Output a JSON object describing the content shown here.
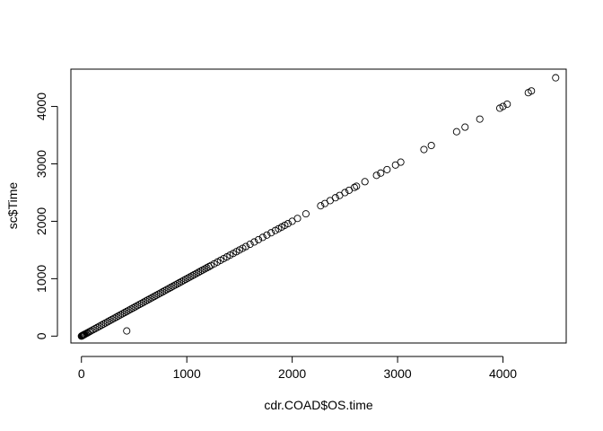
{
  "chart_data": {
    "type": "scatter",
    "title": "",
    "xlabel": "cdr.COAD$OS.time",
    "ylabel": "sc$Time",
    "xlim": [
      -100,
      4600
    ],
    "ylim": [
      -120,
      4650
    ],
    "xticks": [
      0,
      1000,
      2000,
      3000,
      4000
    ],
    "yticks": [
      0,
      1000,
      2000,
      3000,
      4000
    ],
    "grid": false,
    "legend": "none",
    "point_color": "#000000",
    "series": [
      {
        "x": [
          0,
          5,
          10,
          15,
          20,
          25,
          30,
          40,
          50,
          60,
          75,
          90,
          110,
          130,
          150,
          170,
          190,
          210,
          230,
          250,
          270,
          290,
          310,
          330,
          350,
          370,
          390,
          410,
          430,
          450,
          470,
          490,
          510,
          530,
          550,
          570,
          590,
          610,
          630,
          650,
          670,
          690,
          710,
          730,
          750,
          770,
          790,
          810,
          830,
          850,
          870,
          890,
          910,
          930,
          950,
          970,
          990,
          1010,
          1030,
          1050,
          1070,
          1090,
          1110,
          1130,
          1150,
          1170,
          1190,
          1210,
          1230,
          1260,
          1290,
          1320,
          1350,
          1380,
          1410,
          1440,
          1470,
          1500,
          1530,
          1560,
          1600,
          1640,
          1680,
          1720,
          1760,
          1800,
          1840,
          1870,
          1900,
          1930,
          1960,
          2000,
          2050,
          2130,
          2270,
          2310,
          2360,
          2410,
          2450,
          2500,
          2540,
          2590,
          2610,
          2690,
          2800,
          2840,
          2900,
          2980,
          3030,
          3250,
          3320,
          3560,
          3640,
          3780,
          3970,
          4000,
          4040,
          4240,
          4270,
          4500,
          430
        ],
        "y": [
          0,
          5,
          10,
          15,
          20,
          25,
          30,
          40,
          50,
          60,
          75,
          90,
          110,
          130,
          150,
          170,
          190,
          210,
          230,
          250,
          270,
          290,
          310,
          330,
          350,
          370,
          390,
          410,
          430,
          450,
          470,
          490,
          510,
          530,
          550,
          570,
          590,
          610,
          630,
          650,
          670,
          690,
          710,
          730,
          750,
          770,
          790,
          810,
          830,
          850,
          870,
          890,
          910,
          930,
          950,
          970,
          990,
          1010,
          1030,
          1050,
          1070,
          1090,
          1110,
          1130,
          1150,
          1170,
          1190,
          1210,
          1230,
          1260,
          1290,
          1320,
          1350,
          1380,
          1410,
          1440,
          1470,
          1500,
          1530,
          1560,
          1600,
          1640,
          1680,
          1720,
          1760,
          1800,
          1840,
          1870,
          1900,
          1930,
          1960,
          2000,
          2050,
          2130,
          2270,
          2310,
          2360,
          2410,
          2450,
          2500,
          2540,
          2590,
          2610,
          2690,
          2800,
          2840,
          2900,
          2980,
          3030,
          3250,
          3320,
          3560,
          3640,
          3780,
          3970,
          4000,
          4040,
          4240,
          4270,
          4500,
          90
        ]
      }
    ]
  }
}
